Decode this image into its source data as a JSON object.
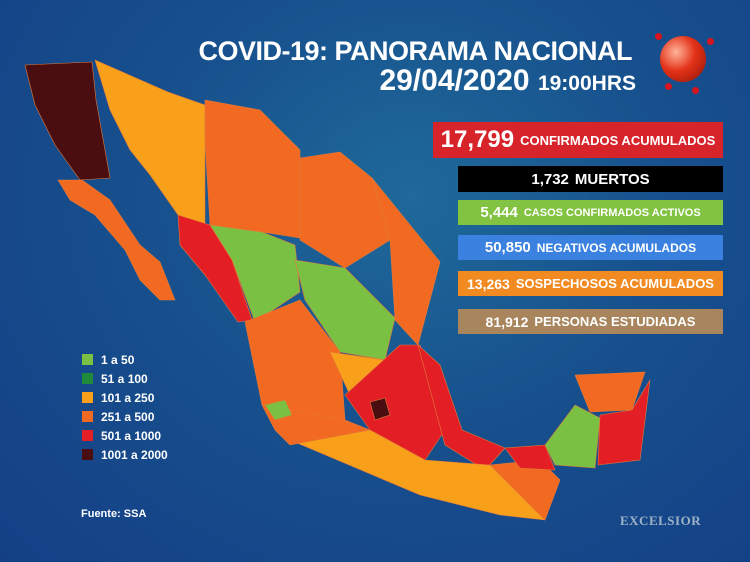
{
  "header": {
    "title": "COVID-19: PANORAMA NACIONAL",
    "date": "29/04/2020",
    "time": "19:00HRS"
  },
  "stats": [
    {
      "number": "17,799",
      "label": "CONFIRMADOS ACUMULADOS",
      "color": "#d7232a"
    },
    {
      "number": "1,732",
      "label": "MUERTOS",
      "color": "#000000"
    },
    {
      "number": "5,444",
      "label": "CASOS CONFIRMADOS ACTIVOS",
      "color": "#82c341"
    },
    {
      "number": "50,850",
      "label": "NEGATIVOS ACUMULADOS",
      "color": "#3b82e0"
    },
    {
      "number": "13,263",
      "label": "SOSPECHOSOS ACUMULADOS",
      "color": "#f28a22"
    },
    {
      "number": "81,912",
      "label": "PERSONAS ESTUDIADAS",
      "color": "#a8855c"
    }
  ],
  "legend": [
    {
      "label": "1 a 50",
      "color": "#7ac043"
    },
    {
      "label": "51 a 100",
      "color": "#1f8a3a"
    },
    {
      "label": "101 a 250",
      "color": "#f9a01b"
    },
    {
      "label": "251 a 500",
      "color": "#f26a21"
    },
    {
      "label": "501 a 1000",
      "color": "#e31e24"
    },
    {
      "label": "1001 a 2000",
      "color": "#4a0d10"
    }
  ],
  "source": "Fuente: SSA",
  "brand": "EXCELSIOR",
  "icons": {
    "logo": "globe-virus-icon"
  }
}
